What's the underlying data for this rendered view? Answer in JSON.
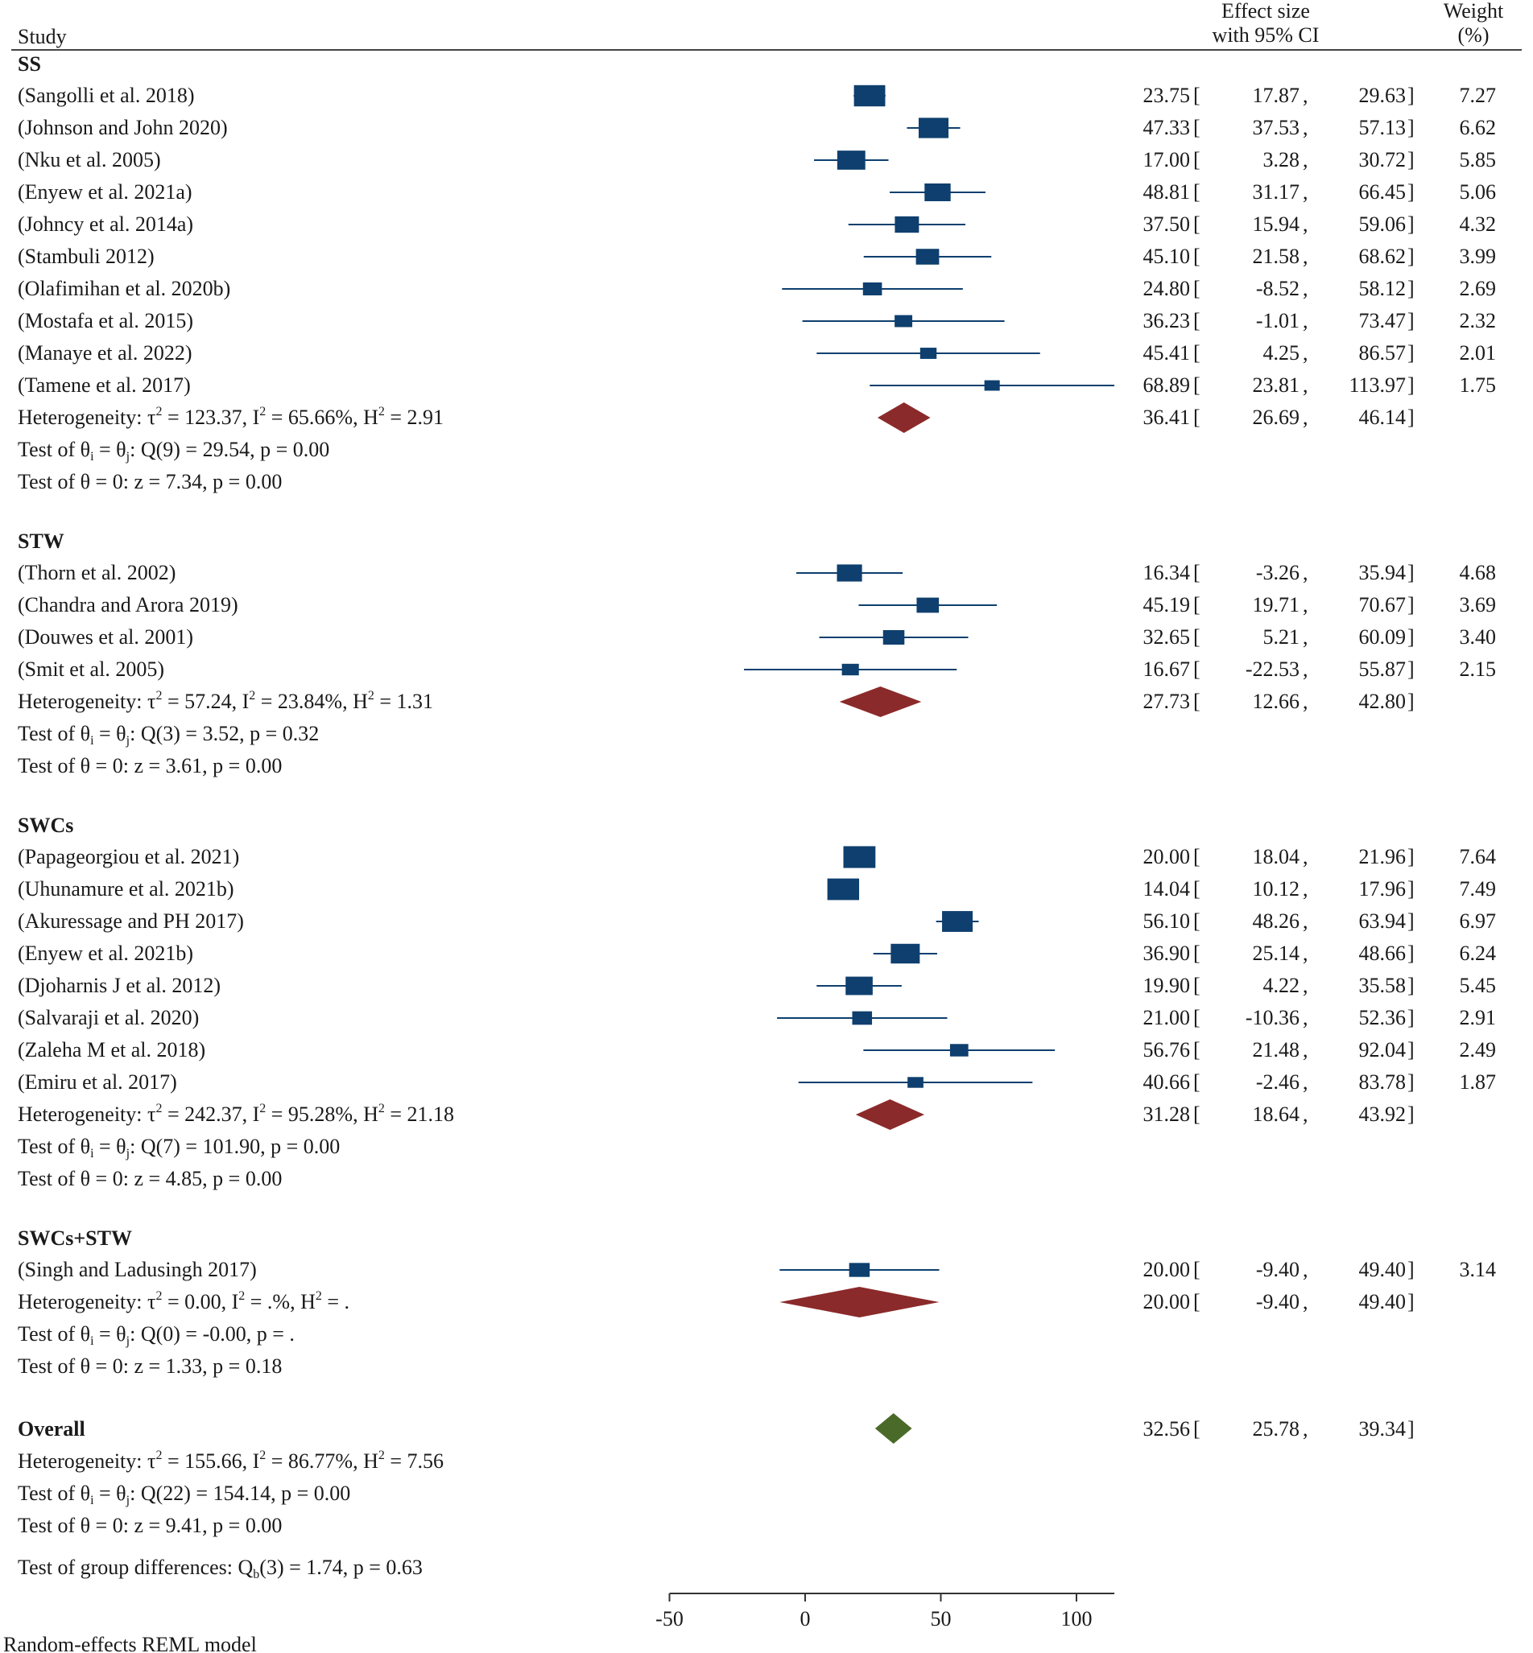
{
  "chart_data": {
    "type": "forest",
    "header": {
      "study": "Study",
      "effect_line1": "Effect size",
      "effect_line2": "with 95% CI",
      "weight_line1": "Weight",
      "weight_line2": "(%)"
    },
    "colors": {
      "study": "#0e3f6e",
      "subgroup": "#8b2a2a",
      "overall": "#4a6a2a",
      "axis": "#333333"
    },
    "x_axis": {
      "ticks": [
        -50,
        0,
        50,
        100
      ],
      "range": [
        -50,
        113.97
      ]
    },
    "groups": [
      {
        "name": "SS",
        "studies": [
          {
            "label": "(Sangolli et al. 2018)",
            "es": 23.75,
            "lo": 17.87,
            "hi": 29.63,
            "weight": 7.27,
            "es_text": "23.75",
            "lo_text": "17.87",
            "hi_text": "29.63",
            "w_text": "7.27"
          },
          {
            "label": "(Johnson and John 2020)",
            "es": 47.33,
            "lo": 37.53,
            "hi": 57.13,
            "weight": 6.62,
            "es_text": "47.33",
            "lo_text": "37.53",
            "hi_text": "57.13",
            "w_text": "6.62"
          },
          {
            "label": "(Nku et al. 2005)",
            "es": 17.0,
            "lo": 3.28,
            "hi": 30.72,
            "weight": 5.85,
            "es_text": "17.00",
            "lo_text": "3.28",
            "hi_text": "30.72",
            "w_text": "5.85"
          },
          {
            "label": "(Enyew et al. 2021a)",
            "es": 48.81,
            "lo": 31.17,
            "hi": 66.45,
            "weight": 5.06,
            "es_text": "48.81",
            "lo_text": "31.17",
            "hi_text": "66.45",
            "w_text": "5.06"
          },
          {
            "label": "(Johncy et al. 2014a)",
            "es": 37.5,
            "lo": 15.94,
            "hi": 59.06,
            "weight": 4.32,
            "es_text": "37.50",
            "lo_text": "15.94",
            "hi_text": "59.06",
            "w_text": "4.32"
          },
          {
            "label": "(Stambuli 2012)",
            "es": 45.1,
            "lo": 21.58,
            "hi": 68.62,
            "weight": 3.99,
            "es_text": "45.10",
            "lo_text": "21.58",
            "hi_text": "68.62",
            "w_text": "3.99"
          },
          {
            "label": "(Olafimihan et al. 2020b)",
            "es": 24.8,
            "lo": -8.52,
            "hi": 58.12,
            "weight": 2.69,
            "es_text": "24.80",
            "lo_text": "-8.52",
            "hi_text": "58.12",
            "w_text": "2.69"
          },
          {
            "label": "(Mostafa et al. 2015)",
            "es": 36.23,
            "lo": -1.01,
            "hi": 73.47,
            "weight": 2.32,
            "es_text": "36.23",
            "lo_text": "-1.01",
            "hi_text": "73.47",
            "w_text": "2.32"
          },
          {
            "label": "(Manaye et al. 2022)",
            "es": 45.41,
            "lo": 4.25,
            "hi": 86.57,
            "weight": 2.01,
            "es_text": "45.41",
            "lo_text": "4.25",
            "hi_text": "86.57",
            "w_text": "2.01"
          },
          {
            "label": "(Tamene et al. 2017)",
            "es": 68.89,
            "lo": 23.81,
            "hi": 113.97,
            "weight": 1.75,
            "es_text": "68.89",
            "lo_text": "23.81",
            "hi_text": "113.97",
            "w_text": "1.75"
          }
        ],
        "pooled": {
          "es": 36.41,
          "lo": 26.69,
          "hi": 46.14,
          "es_text": "36.41",
          "lo_text": "26.69",
          "hi_text": "46.14"
        },
        "stats": {
          "tau2": "123.37",
          "i2": "65.66%",
          "h2": "2.91",
          "q_df": "9",
          "q_val": "29.54",
          "q_p": "0.00",
          "z": "7.34",
          "z_p": "0.00"
        }
      },
      {
        "name": "STW",
        "studies": [
          {
            "label": "(Thorn et al. 2002)",
            "es": 16.34,
            "lo": -3.26,
            "hi": 35.94,
            "weight": 4.68,
            "es_text": "16.34",
            "lo_text": "-3.26",
            "hi_text": "35.94",
            "w_text": "4.68"
          },
          {
            "label": "(Chandra and Arora 2019)",
            "es": 45.19,
            "lo": 19.71,
            "hi": 70.67,
            "weight": 3.69,
            "es_text": "45.19",
            "lo_text": "19.71",
            "hi_text": "70.67",
            "w_text": "3.69"
          },
          {
            "label": "(Douwes et al. 2001)",
            "es": 32.65,
            "lo": 5.21,
            "hi": 60.09,
            "weight": 3.4,
            "es_text": "32.65",
            "lo_text": "5.21",
            "hi_text": "60.09",
            "w_text": "3.40"
          },
          {
            "label": "(Smit et al. 2005)",
            "es": 16.67,
            "lo": -22.53,
            "hi": 55.87,
            "weight": 2.15,
            "es_text": "16.67",
            "lo_text": "-22.53",
            "hi_text": "55.87",
            "w_text": "2.15"
          }
        ],
        "pooled": {
          "es": 27.73,
          "lo": 12.66,
          "hi": 42.8,
          "es_text": "27.73",
          "lo_text": "12.66",
          "hi_text": "42.80"
        },
        "stats": {
          "tau2": "57.24",
          "i2": "23.84%",
          "h2": "1.31",
          "q_df": "3",
          "q_val": "3.52",
          "q_p": "0.32",
          "z": "3.61",
          "z_p": "0.00"
        }
      },
      {
        "name": "SWCs",
        "studies": [
          {
            "label": "(Papageorgiou et al. 2021)",
            "es": 20.0,
            "lo": 18.04,
            "hi": 21.96,
            "weight": 7.64,
            "es_text": "20.00",
            "lo_text": "18.04",
            "hi_text": "21.96",
            "w_text": "7.64"
          },
          {
            "label": "(Uhunamure et al. 2021b)",
            "es": 14.04,
            "lo": 10.12,
            "hi": 17.96,
            "weight": 7.49,
            "es_text": "14.04",
            "lo_text": "10.12",
            "hi_text": "17.96",
            "w_text": "7.49"
          },
          {
            "label": "(Akuressage and PH 2017)",
            "es": 56.1,
            "lo": 48.26,
            "hi": 63.94,
            "weight": 6.97,
            "es_text": "56.10",
            "lo_text": "48.26",
            "hi_text": "63.94",
            "w_text": "6.97"
          },
          {
            "label": "(Enyew et al. 2021b)",
            "es": 36.9,
            "lo": 25.14,
            "hi": 48.66,
            "weight": 6.24,
            "es_text": "36.90",
            "lo_text": "25.14",
            "hi_text": "48.66",
            "w_text": "6.24"
          },
          {
            "label": "(Djoharnis J et al. 2012)",
            "es": 19.9,
            "lo": 4.22,
            "hi": 35.58,
            "weight": 5.45,
            "es_text": "19.90",
            "lo_text": "4.22",
            "hi_text": "35.58",
            "w_text": "5.45"
          },
          {
            "label": "(Salvaraji et al. 2020)",
            "es": 21.0,
            "lo": -10.36,
            "hi": 52.36,
            "weight": 2.91,
            "es_text": "21.00",
            "lo_text": "-10.36",
            "hi_text": "52.36",
            "w_text": "2.91"
          },
          {
            "label": "(Zaleha M et al. 2018)",
            "es": 56.76,
            "lo": 21.48,
            "hi": 92.04,
            "weight": 2.49,
            "es_text": "56.76",
            "lo_text": "21.48",
            "hi_text": "92.04",
            "w_text": "2.49"
          },
          {
            "label": "(Emiru et al. 2017)",
            "es": 40.66,
            "lo": -2.46,
            "hi": 83.78,
            "weight": 1.87,
            "es_text": "40.66",
            "lo_text": "-2.46",
            "hi_text": "83.78",
            "w_text": "1.87"
          }
        ],
        "pooled": {
          "es": 31.28,
          "lo": 18.64,
          "hi": 43.92,
          "es_text": "31.28",
          "lo_text": "18.64",
          "hi_text": "43.92"
        },
        "stats": {
          "tau2": "242.37",
          "i2": "95.28%",
          "h2": "21.18",
          "q_df": "7",
          "q_val": "101.90",
          "q_p": "0.00",
          "z": "4.85",
          "z_p": "0.00"
        }
      },
      {
        "name": "SWCs+STW",
        "studies": [
          {
            "label": "(Singh and Ladusingh 2017)",
            "es": 20.0,
            "lo": -9.4,
            "hi": 49.4,
            "weight": 3.14,
            "es_text": "20.00",
            "lo_text": "-9.40",
            "hi_text": "49.40",
            "w_text": "3.14"
          }
        ],
        "pooled": {
          "es": 20.0,
          "lo": -9.4,
          "hi": 49.4,
          "es_text": "20.00",
          "lo_text": "-9.40",
          "hi_text": "49.40"
        },
        "stats": {
          "tau2": "0.00",
          "i2": ".%",
          "h2": ".",
          "q_df": "0",
          "q_val": "-0.00",
          "q_p": ".",
          "z": "1.33",
          "z_p": "0.18"
        }
      }
    ],
    "overall": {
      "label": "Overall",
      "es": 32.56,
      "lo": 25.78,
      "hi": 39.34,
      "es_text": "32.56",
      "lo_text": "25.78",
      "hi_text": "39.34",
      "stats": {
        "tau2": "155.66",
        "i2": "86.77%",
        "h2": "7.56",
        "q_df": "22",
        "q_val": "154.14",
        "q_p": "0.00",
        "z": "9.41",
        "z_p": "0.00"
      }
    },
    "group_difference": {
      "df": "3",
      "q": "1.74",
      "p": "0.63"
    },
    "footnote": "Random-effects REML model"
  }
}
